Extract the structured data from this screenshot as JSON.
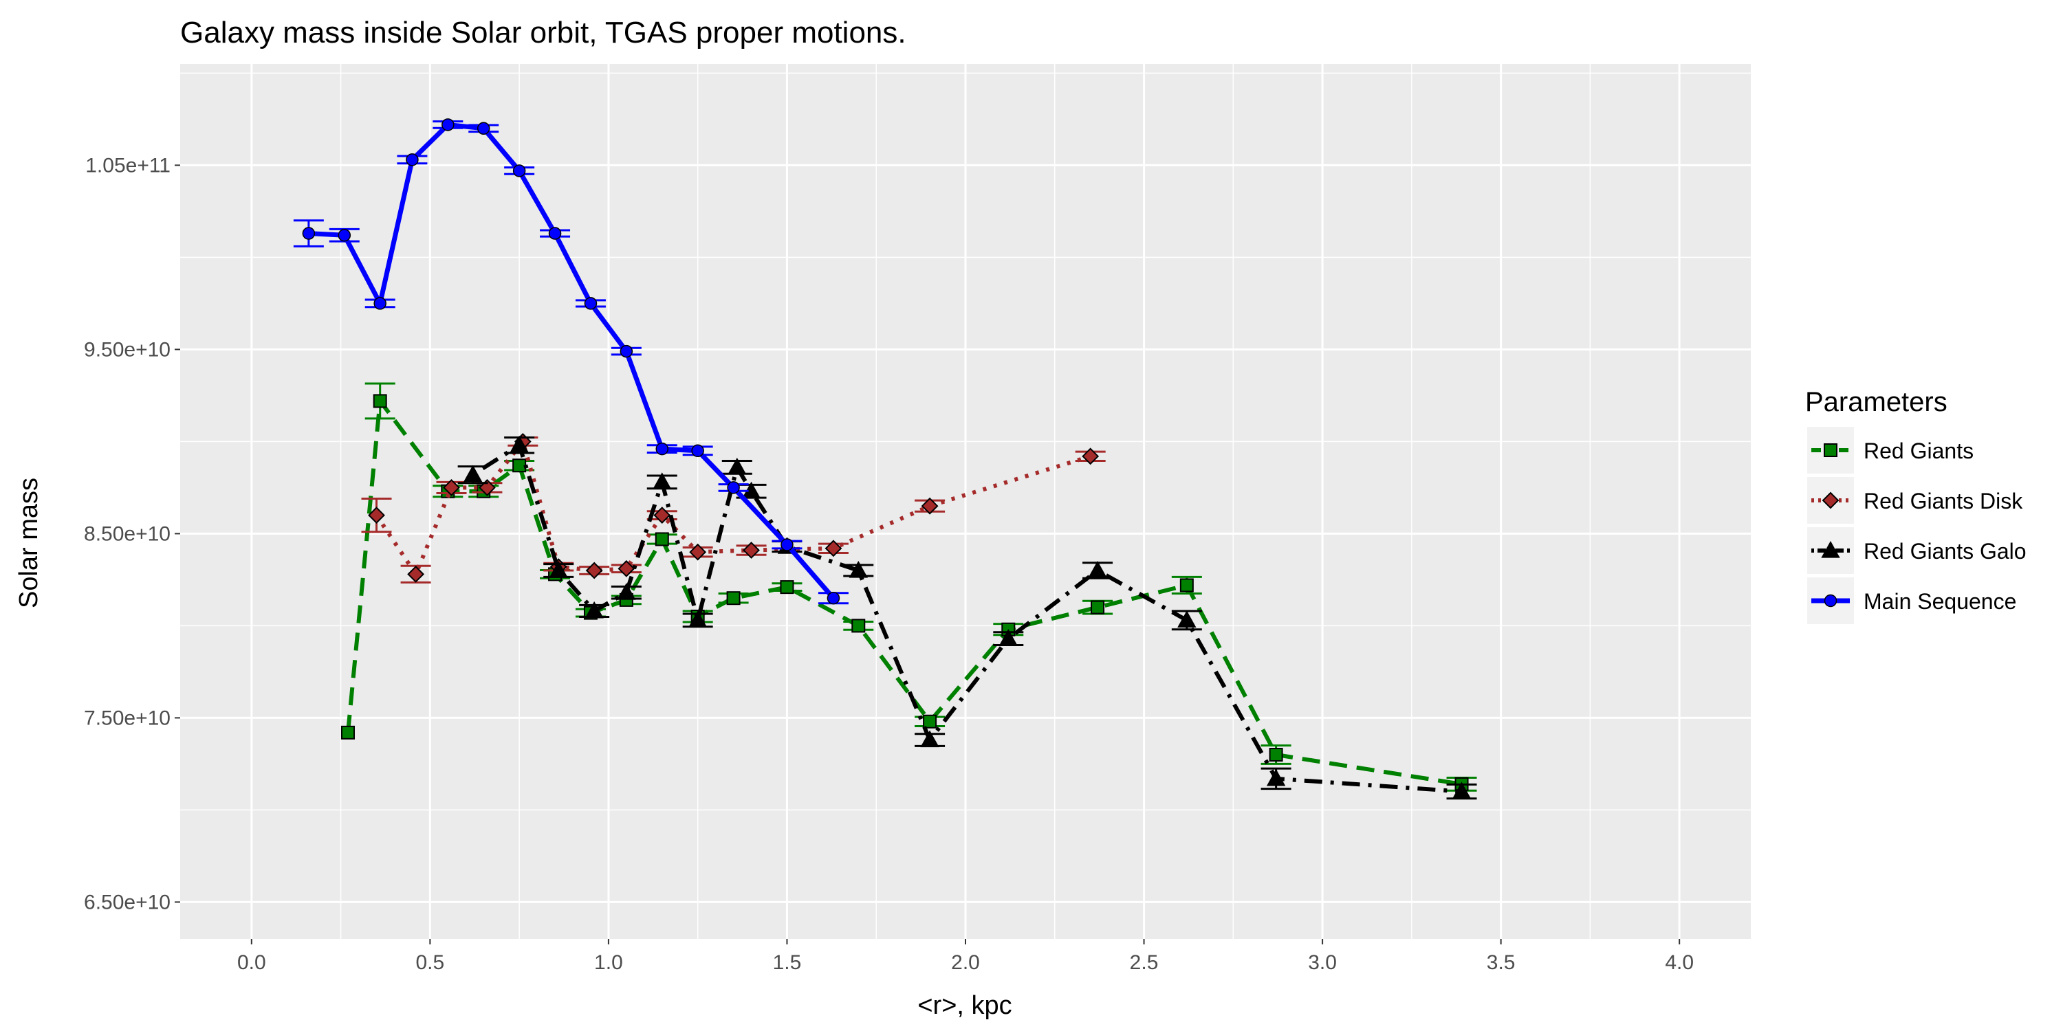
{
  "chart_data": {
    "type": "line",
    "title": "Galaxy mass inside Solar orbit,  TGAS  proper motions.",
    "xlabel": "<r>, kpc",
    "ylabel": "Solar mass",
    "xlim": [
      -0.2,
      4.2
    ],
    "ylim": [
      63000000000.0,
      110500000000.0
    ],
    "x_ticks": [
      0.0,
      0.5,
      1.0,
      1.5,
      2.0,
      2.5,
      3.0,
      3.5,
      4.0
    ],
    "x_tick_labels": [
      "0.0",
      "0.5",
      "1.0",
      "1.5",
      "2.0",
      "2.5",
      "3.0",
      "3.5",
      "4.0"
    ],
    "y_ticks": [
      65000000000.0,
      75000000000.0,
      85000000000.0,
      95000000000.0,
      105000000000.0
    ],
    "y_tick_labels": [
      "6.50e+10",
      "7.50e+10",
      "8.50e+10",
      "9.50e+10",
      "1.05e+11"
    ],
    "grid": true,
    "panel_background": "#ebebeb",
    "legend": {
      "title": "Parameters",
      "placement": "right"
    },
    "series": [
      {
        "name": "Red Giants",
        "color": "#008000",
        "line_style": "dashed",
        "marker": "square",
        "x": [
          0.27,
          0.36,
          0.55,
          0.65,
          0.75,
          0.85,
          0.95,
          1.05,
          1.15,
          1.25,
          1.35,
          1.5,
          1.7,
          1.9,
          2.12,
          2.37,
          2.62,
          2.87,
          3.39
        ],
        "y": [
          74200000000.0,
          92200000000.0,
          87300000000.0,
          87300000000.0,
          88700000000.0,
          82800000000.0,
          80700000000.0,
          81400000000.0,
          84700000000.0,
          80500000000.0,
          81500000000.0,
          82100000000.0,
          80000000000.0,
          74800000000.0,
          79800000000.0,
          81000000000.0,
          82200000000.0,
          73000000000.0,
          71400000000.0
        ],
        "err": [
          0.0,
          950000000.0,
          300000000.0,
          300000000.0,
          250000000.0,
          220000000.0,
          200000000.0,
          220000000.0,
          250000000.0,
          300000000.0,
          250000000.0,
          200000000.0,
          220000000.0,
          250000000.0,
          300000000.0,
          350000000.0,
          450000000.0,
          500000000.0,
          350000000.0
        ]
      },
      {
        "name": "Red Giants Disk",
        "color": "#a52a2a",
        "line_style": "dotted",
        "marker": "diamond",
        "x": [
          0.35,
          0.46,
          0.56,
          0.66,
          0.76,
          0.86,
          0.96,
          1.05,
          1.15,
          1.25,
          1.4,
          1.63,
          1.9,
          2.35
        ],
        "y": [
          86000000000.0,
          82800000000.0,
          87500000000.0,
          87500000000.0,
          90000000000.0,
          83200000000.0,
          83000000000.0,
          83100000000.0,
          86000000000.0,
          84000000000.0,
          84100000000.0,
          84200000000.0,
          86500000000.0,
          89200000000.0
        ],
        "err": [
          900000000.0,
          450000000.0,
          300000000.0,
          250000000.0,
          220000000.0,
          200000000.0,
          200000000.0,
          200000000.0,
          220000000.0,
          250000000.0,
          250000000.0,
          250000000.0,
          300000000.0,
          250000000.0
        ]
      },
      {
        "name": "Red Giants Galo",
        "color": "#000000",
        "line_style": "dotdash",
        "marker": "triangle",
        "x": [
          0.62,
          0.75,
          0.86,
          0.96,
          1.05,
          1.15,
          1.25,
          1.36,
          1.4,
          1.5,
          1.7,
          1.9,
          2.12,
          2.37,
          2.62,
          2.87,
          3.39
        ],
        "y": [
          88200000000.0,
          89800000000.0,
          83000000000.0,
          80800000000.0,
          81800000000.0,
          87800000000.0,
          80300000000.0,
          88600000000.0,
          87300000000.0,
          84300000000.0,
          83000000000.0,
          73800000000.0,
          79300000000.0,
          83000000000.0,
          80300000000.0,
          71700000000.0,
          71000000000.0
        ],
        "err": [
          450000000.0,
          420000000.0,
          350000000.0,
          320000000.0,
          330000000.0,
          350000000.0,
          350000000.0,
          350000000.0,
          350000000.0,
          280000000.0,
          300000000.0,
          330000000.0,
          350000000.0,
          420000000.0,
          500000000.0,
          550000000.0,
          380000000.0
        ]
      },
      {
        "name": "Main Sequence",
        "color": "#0000ff",
        "line_style": "solid",
        "marker": "circle",
        "x": [
          0.16,
          0.26,
          0.36,
          0.45,
          0.55,
          0.65,
          0.75,
          0.85,
          0.95,
          1.05,
          1.15,
          1.25,
          1.35,
          1.5,
          1.63
        ],
        "y": [
          101300000000.0,
          101200000000.0,
          97500000000.0,
          105300000000.0,
          107200000000.0,
          107000000000.0,
          104700000000.0,
          101300000000.0,
          97500000000.0,
          94900000000.0,
          89600000000.0,
          89500000000.0,
          87500000000.0,
          84400000000.0,
          81500000000.0
        ],
        "err": [
          700000000.0,
          330000000.0,
          200000000.0,
          200000000.0,
          180000000.0,
          180000000.0,
          180000000.0,
          170000000.0,
          170000000.0,
          180000000.0,
          200000000.0,
          220000000.0,
          180000000.0,
          200000000.0,
          280000000.0
        ]
      }
    ]
  }
}
